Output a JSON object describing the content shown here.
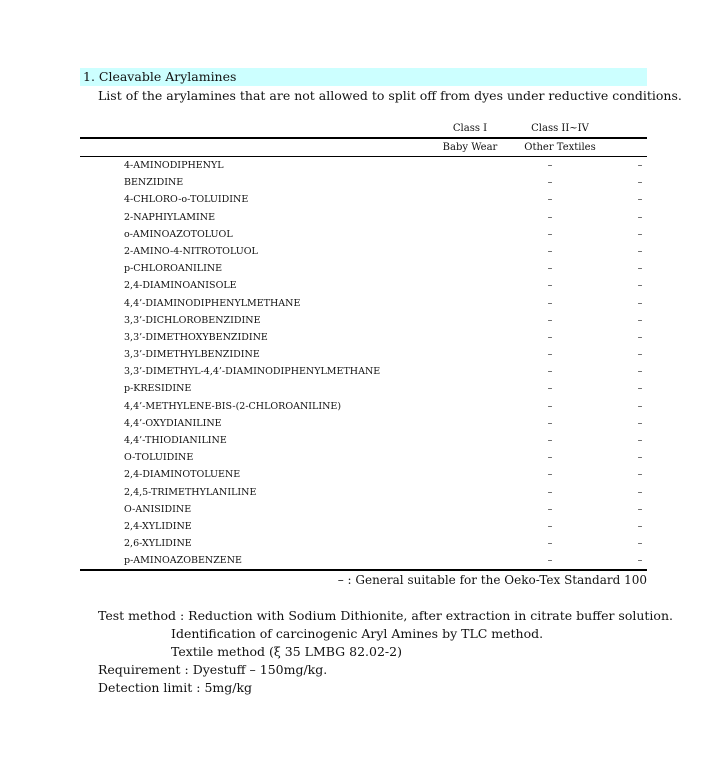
{
  "section_title": "1. Cleavable Arylamines",
  "intro": "List of the arylamines that are not allowed to split off from dyes under reductive conditions.",
  "columns": [
    {
      "class": "Class I",
      "category": "Baby Wear"
    },
    {
      "class": "Class II~IV",
      "category": "Other Textiles"
    }
  ],
  "rows": [
    {
      "name": "4-AMINODIPHENYL",
      "c1": "–",
      "c2": "–"
    },
    {
      "name": "BENZIDINE",
      "c1": "–",
      "c2": "–"
    },
    {
      "name": "4-CHLORO-o-TOLUIDINE",
      "c1": "–",
      "c2": "–"
    },
    {
      "name": "2-NAPHIYLAMINE",
      "c1": "–",
      "c2": "–"
    },
    {
      "name": "o-AMINOAZOTOLUOL",
      "c1": "–",
      "c2": "–"
    },
    {
      "name": "2-AMINO-4-NITROTOLUOL",
      "c1": "–",
      "c2": "–"
    },
    {
      "name": "p-CHLOROANILINE",
      "c1": "–",
      "c2": "–"
    },
    {
      "name": "2,4-DIAMINOANISOLE",
      "c1": "–",
      "c2": "–"
    },
    {
      "name": "4,4’-DIAMINODIPHENYLMETHANE",
      "c1": "–",
      "c2": "–"
    },
    {
      "name": "3,3’-DICHLOROBENZIDINE",
      "c1": "–",
      "c2": "–"
    },
    {
      "name": "3,3’-DIMETHOXYBENZIDINE",
      "c1": "–",
      "c2": "–"
    },
    {
      "name": "3,3’-DIMETHYLBENZIDINE",
      "c1": "–",
      "c2": "–"
    },
    {
      "name": "3,3’-DIMETHYL-4,4’-DIAMINODIPHENYLMETHANE",
      "c1": "–",
      "c2": "–"
    },
    {
      "name": "p-KRESIDINE",
      "c1": "–",
      "c2": "–"
    },
    {
      "name": "4,4’-METHYLENE-BIS-(2-CHLOROANILINE)",
      "c1": "–",
      "c2": "–"
    },
    {
      "name": "4,4’-OXYDIANILINE",
      "c1": "–",
      "c2": "–"
    },
    {
      "name": "4,4’-THIODIANILINE",
      "c1": "–",
      "c2": "–"
    },
    {
      "name": "O-TOLUIDINE",
      "c1": "–",
      "c2": "–"
    },
    {
      "name": "2,4-DIAMINOTOLUENE",
      "c1": "–",
      "c2": "–"
    },
    {
      "name": "2,4,5-TRIMETHYLANILINE",
      "c1": "–",
      "c2": "–"
    },
    {
      "name": "O-ANISIDINE",
      "c1": "–",
      "c2": "–"
    },
    {
      "name": "2,4-XYLIDINE",
      "c1": "–",
      "c2": "–"
    },
    {
      "name": "2,6-XYLIDINE",
      "c1": "–",
      "c2": "–"
    },
    {
      "name": "p-AMINOAZOBENZENE",
      "c1": "–",
      "c2": "–"
    }
  ],
  "legend": "– : General suitable for the Oeko-Tex Standard 100",
  "test_method": [
    "Test method : Reduction with Sodium Dithionite, after extraction in citrate buffer solution.",
    "Identification of carcinogenic Aryl Amines by TLC method.",
    "Textile method (ξ 35 LMBG 82.02-2)"
  ],
  "requirement": "Requirement : Dyestuff – 150mg/kg.",
  "detection_limit": "Detection limit : 5mg/kg",
  "colors": {
    "section_bg": "#ccffff"
  }
}
